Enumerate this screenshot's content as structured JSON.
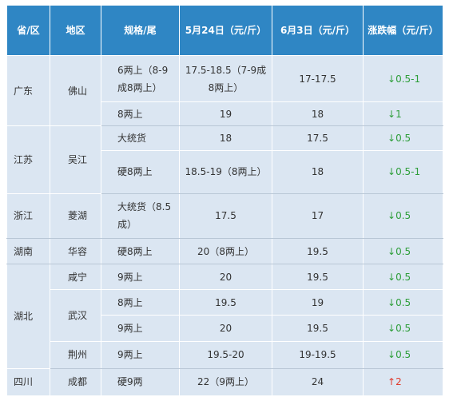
{
  "table": {
    "headers": [
      "省/区",
      "地区",
      "规格/尾",
      "5月24日（元/斤）",
      "6月3日（元/斤）",
      "涨跌幅（元/斤）"
    ],
    "rows": [
      {
        "province": "广东",
        "city": "佛山",
        "spec": "6两上（8-9成8两上）",
        "may24": "17.5-18.5（7-9成8两上）",
        "jun3": "17-17.5",
        "change_arrow": "↓",
        "change": "0.5-1",
        "direction": "down"
      },
      {
        "spec": "8两上",
        "may24": "19",
        "jun3": "18",
        "change_arrow": "↓",
        "change": "1",
        "direction": "down"
      },
      {
        "province": "江苏",
        "city": "吴江",
        "spec": "大统货",
        "may24": "18",
        "jun3": "17.5",
        "change_arrow": "↓",
        "change": "0.5",
        "direction": "down"
      },
      {
        "spec": "硬8两上",
        "may24": "18.5-19（8两上）",
        "jun3": "18",
        "change_arrow": "↓",
        "change": "0.5-1",
        "direction": "down"
      },
      {
        "province": "浙江",
        "city": "菱湖",
        "spec": "大统货（8.5成）",
        "may24": "17.5",
        "jun3": "17",
        "change_arrow": "↓",
        "change": "0.5",
        "direction": "down"
      },
      {
        "province": "湖南",
        "city": "华容",
        "spec": "硬8两上",
        "may24": "20（8两上）",
        "jun3": "19.5",
        "change_arrow": "↓",
        "change": "0.5",
        "direction": "down"
      },
      {
        "province": "湖北",
        "city": "咸宁",
        "spec": "9两上",
        "may24": "20",
        "jun3": "19.5",
        "change_arrow": "↓",
        "change": "0.5",
        "direction": "down"
      },
      {
        "city": "武汉",
        "spec": "8两上",
        "may24": "19.5",
        "jun3": "19",
        "change_arrow": "↓",
        "change": "0.5",
        "direction": "down"
      },
      {
        "spec": "9两上",
        "may24": "20",
        "jun3": "19.5",
        "change_arrow": "↓",
        "change": "0.5",
        "direction": "down"
      },
      {
        "city": "荆州",
        "spec": "9两上",
        "may24": "19.5-20",
        "jun3": "19-19.5",
        "change_arrow": "↓",
        "change": "0.5",
        "direction": "down"
      },
      {
        "province": "四川",
        "city": "成都",
        "spec": "硬9两",
        "may24": "22（9两上）",
        "jun3": "24",
        "change_arrow": "↑",
        "change": "2",
        "direction": "up"
      }
    ]
  },
  "colors": {
    "header_bg": "#2f86c4",
    "cell_bg": "#dbe6f2",
    "down": "#2e9e3a",
    "up": "#e0392b"
  }
}
